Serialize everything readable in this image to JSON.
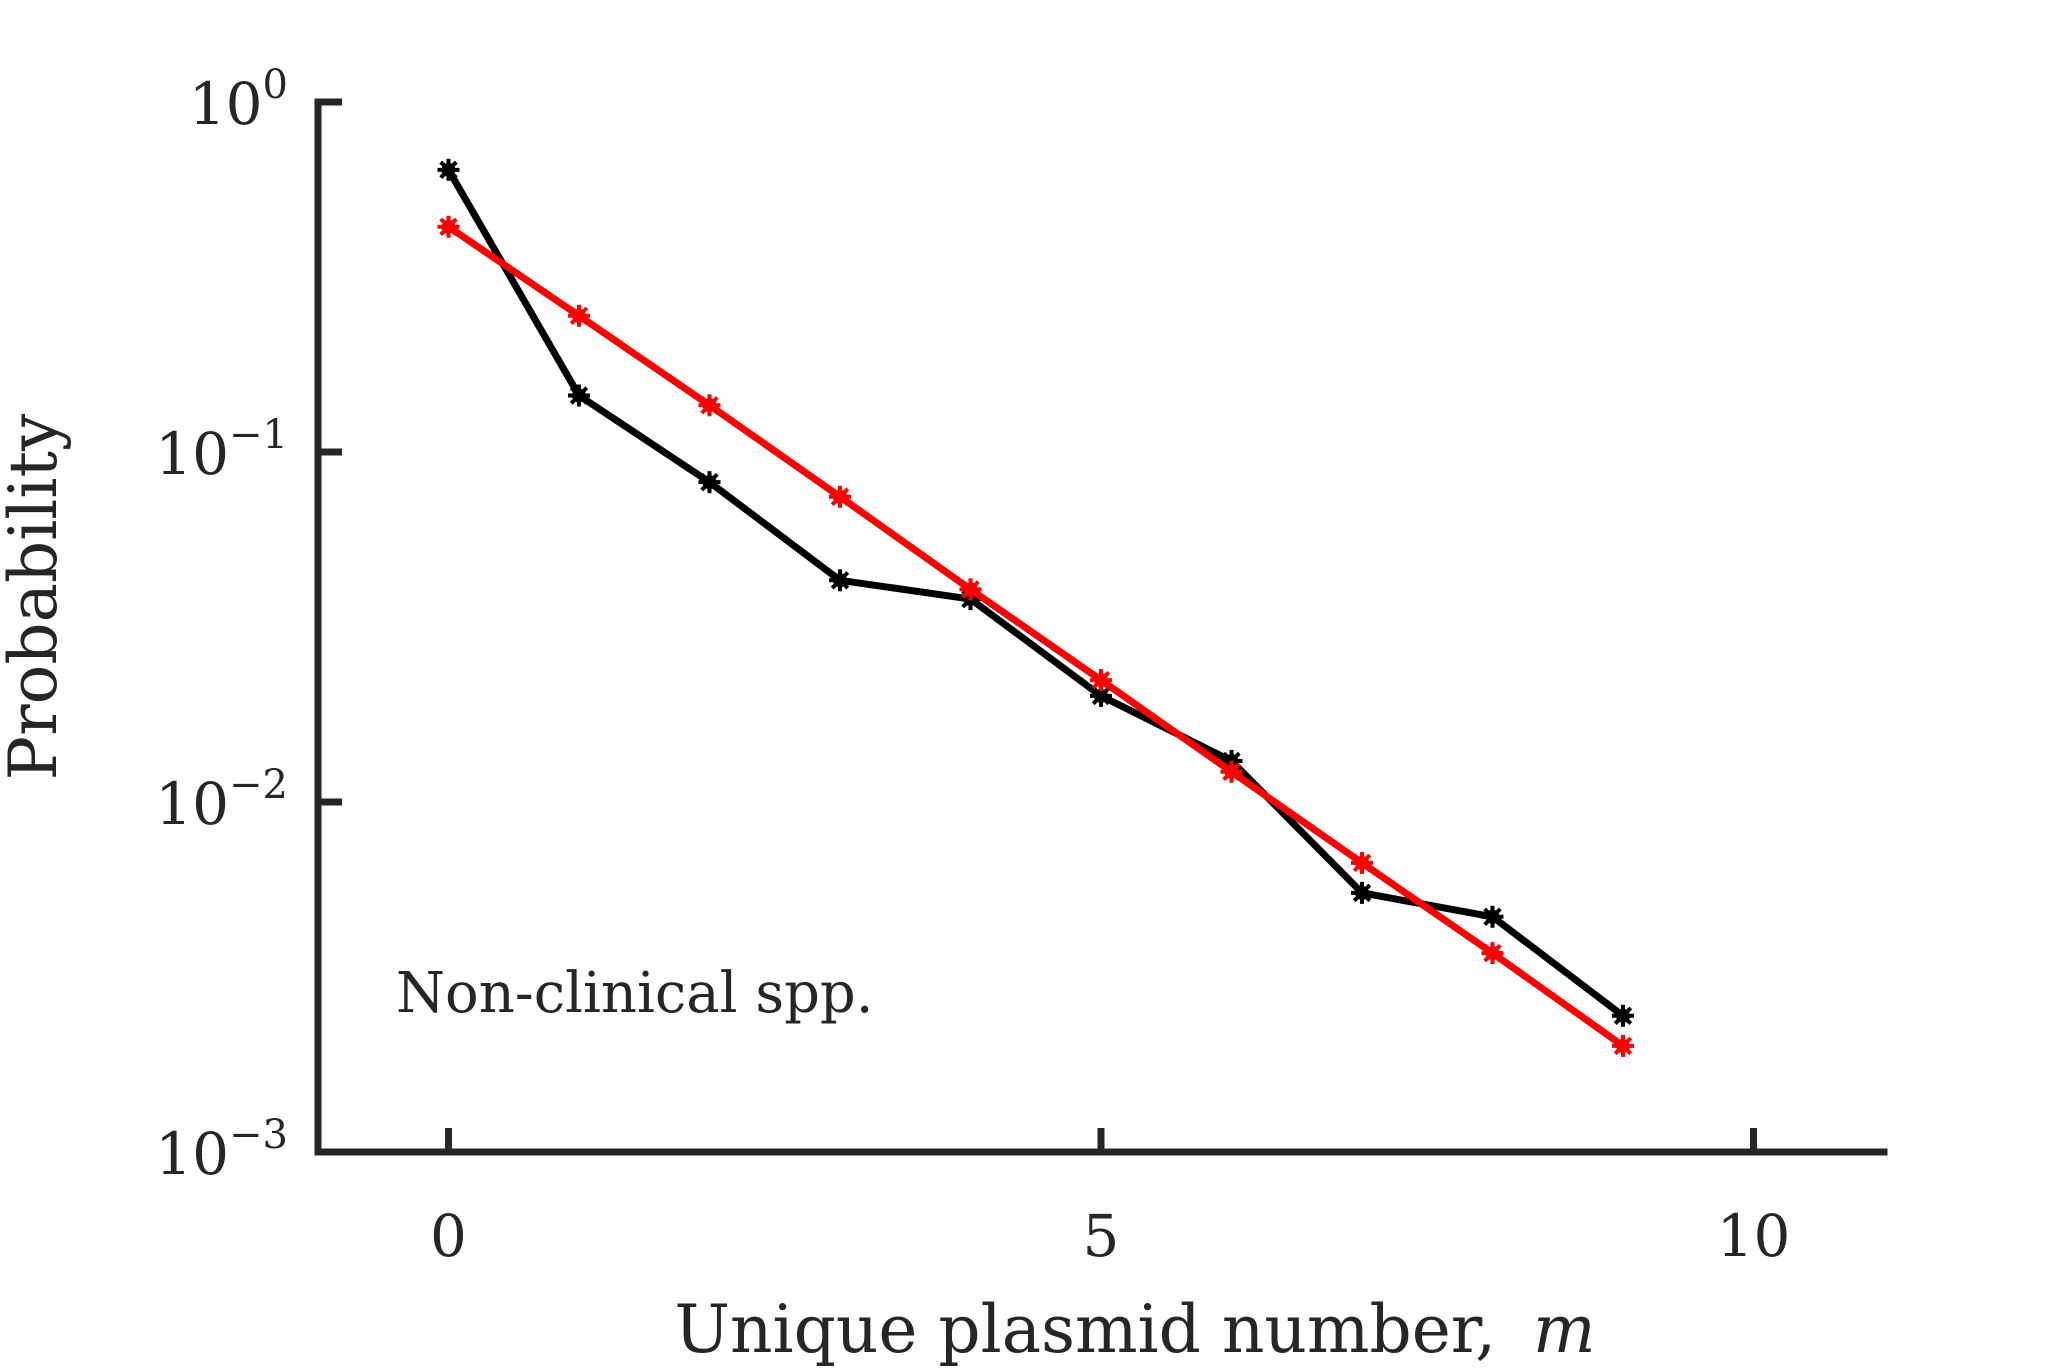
{
  "chart_data": {
    "type": "line",
    "xlabel": "Unique plasmid number,",
    "xlabel_var": "m",
    "ylabel": "Probability",
    "annotation": "Non-clinical spp.",
    "xlim": [
      -1,
      11
    ],
    "ylim": [
      0.001,
      1
    ],
    "y_scale": "log",
    "grid": false,
    "x_ticks": [
      0,
      5,
      10
    ],
    "x_tick_labels": [
      "0",
      "5",
      "10"
    ],
    "y_ticks": [
      1,
      0.1,
      0.01,
      0.001
    ],
    "y_tick_base": "10",
    "y_tick_exponents": [
      "0",
      "−1",
      "−2",
      "−3"
    ],
    "series": [
      {
        "color": "#000000",
        "x": [
          0,
          1,
          2,
          3,
          4,
          5,
          6,
          7,
          8,
          9
        ],
        "values": [
          0.64,
          0.145,
          0.082,
          0.043,
          0.038,
          0.0201,
          0.0131,
          0.0055,
          0.0047,
          0.00245
        ]
      },
      {
        "color": "#ff0000",
        "x": [
          0,
          1,
          2,
          3,
          4,
          5,
          6,
          7,
          8,
          9
        ],
        "values": [
          0.44,
          0.245,
          0.136,
          0.0745,
          0.0405,
          0.0223,
          0.0122,
          0.0067,
          0.0037,
          0.00201
        ]
      }
    ]
  }
}
